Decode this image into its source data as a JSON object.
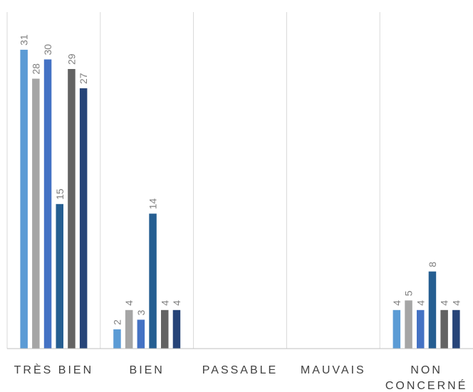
{
  "chart_data": {
    "type": "bar",
    "categories": [
      [
        "TRÈS BIEN"
      ],
      [
        "BIEN"
      ],
      [
        "PASSABLE"
      ],
      [
        "MAUVAIS"
      ],
      [
        "NON",
        "CONCERNÉ"
      ]
    ],
    "series": [
      {
        "values": [
          31,
          2,
          0,
          0,
          4
        ],
        "color": "#5b9bd5"
      },
      {
        "values": [
          28,
          4,
          0,
          0,
          5
        ],
        "color": "#a5a5a5"
      },
      {
        "values": [
          30,
          3,
          0,
          0,
          4
        ],
        "color": "#4472c4"
      },
      {
        "values": [
          15,
          14,
          0,
          0,
          8
        ],
        "color": "#255e91"
      },
      {
        "values": [
          29,
          4,
          0,
          0,
          4
        ],
        "color": "#636363"
      },
      {
        "values": [
          27,
          4,
          0,
          0,
          4
        ],
        "color": "#264478"
      }
    ],
    "ylim": [
      0,
      35
    ],
    "grid": "vertical separators",
    "data_labels": true,
    "legend": "none"
  }
}
